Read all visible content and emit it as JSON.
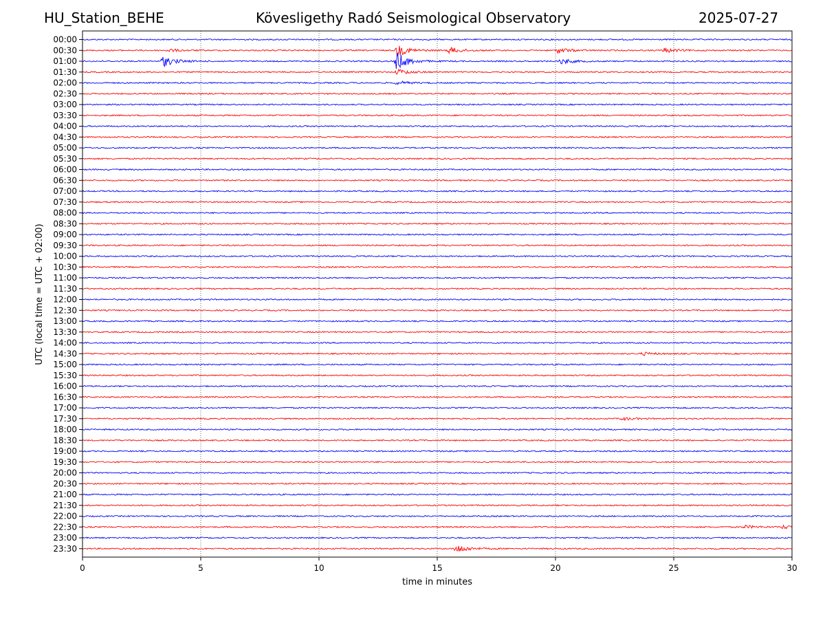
{
  "header": {
    "station": "HU_Station_BEHE",
    "title": "Kövesligethy Radó Seismological Observatory",
    "date": "2025-07-27"
  },
  "chart_data": {
    "type": "line",
    "title": "Kövesligethy Radó Seismological Observatory",
    "xlabel": "time in minutes",
    "ylabel": "UTC (local time = UTC + 02:00)",
    "xlim": [
      0,
      30
    ],
    "x_ticks": [
      "0",
      "5",
      "10",
      "15",
      "20",
      "25",
      "30"
    ],
    "x_tick_values": [
      0,
      5,
      10,
      15,
      20,
      25,
      30
    ],
    "grid": "vertical dotted at x ticks",
    "row_labels": [
      "00:00",
      "00:30",
      "01:00",
      "01:30",
      "02:00",
      "02:30",
      "03:00",
      "03:30",
      "04:00",
      "04:30",
      "05:00",
      "05:30",
      "06:00",
      "06:30",
      "07:00",
      "07:30",
      "08:00",
      "08:30",
      "09:00",
      "09:30",
      "10:00",
      "10:30",
      "11:00",
      "11:30",
      "12:00",
      "12:30",
      "13:00",
      "13:30",
      "14:00",
      "14:30",
      "15:00",
      "15:30",
      "16:00",
      "16:30",
      "17:00",
      "17:30",
      "18:00",
      "18:30",
      "19:00",
      "19:30",
      "20:00",
      "20:30",
      "21:00",
      "21:30",
      "22:00",
      "22:30",
      "23:00",
      "23:30"
    ],
    "trace_colors": [
      "#0000ff",
      "#ff0000"
    ],
    "events": [
      {
        "row": "01:00",
        "minute": 3.4,
        "amplitude": 0.9
      },
      {
        "row": "00:30",
        "minute": 3.6,
        "amplitude": 0.25
      },
      {
        "row": "01:00",
        "minute": 13.25,
        "amplitude": 1.6
      },
      {
        "row": "00:30",
        "minute": 13.3,
        "amplitude": 1.0
      },
      {
        "row": "01:30",
        "minute": 13.3,
        "amplitude": 0.5
      },
      {
        "row": "02:00",
        "minute": 13.3,
        "amplitude": 0.3
      },
      {
        "row": "00:30",
        "minute": 15.5,
        "amplitude": 0.55
      },
      {
        "row": "00:30",
        "minute": 20.1,
        "amplitude": 0.45
      },
      {
        "row": "01:00",
        "minute": 20.2,
        "amplitude": 0.5
      },
      {
        "row": "00:30",
        "minute": 24.6,
        "amplitude": 0.4
      },
      {
        "row": "14:30",
        "minute": 23.7,
        "amplitude": 0.25
      },
      {
        "row": "17:30",
        "minute": 22.8,
        "amplitude": 0.25
      },
      {
        "row": "22:30",
        "minute": 28.0,
        "amplitude": 0.25
      },
      {
        "row": "22:30",
        "minute": 29.6,
        "amplitude": 0.3
      },
      {
        "row": "23:30",
        "minute": 15.8,
        "amplitude": 0.75
      }
    ]
  }
}
